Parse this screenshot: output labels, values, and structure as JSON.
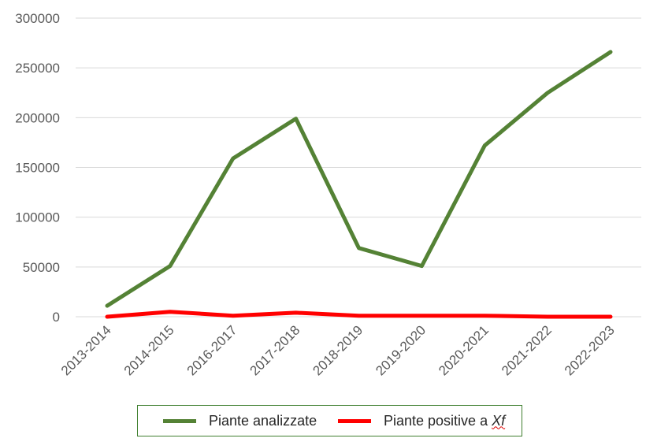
{
  "chart_data": {
    "type": "line",
    "categories": [
      "2013-2014",
      "2014-2015",
      "2016-2017",
      "2017-2018",
      "2018-2019",
      "2019-2020",
      "2020-2021",
      "2021-2022",
      "2022-2023"
    ],
    "series": [
      {
        "name": "Piante analizzate",
        "color": "#548235",
        "values": [
          11000,
          51000,
          159000,
          199000,
          69000,
          51000,
          172000,
          225000,
          266000
        ]
      },
      {
        "name": "Piante positive a Xf",
        "name_prefix": "Piante positive a ",
        "name_italic": "Xf",
        "color": "#ff0000",
        "values": [
          0,
          5000,
          1000,
          4000,
          1000,
          1000,
          1000,
          0,
          0
        ]
      }
    ],
    "ylim": [
      0,
      300000
    ],
    "yticks": [
      "0",
      "50000",
      "100000",
      "150000",
      "200000",
      "250000",
      "300000"
    ],
    "ytick_values": [
      0,
      50000,
      100000,
      150000,
      200000,
      250000,
      300000
    ],
    "grid": true,
    "legend_position": "bottom"
  }
}
